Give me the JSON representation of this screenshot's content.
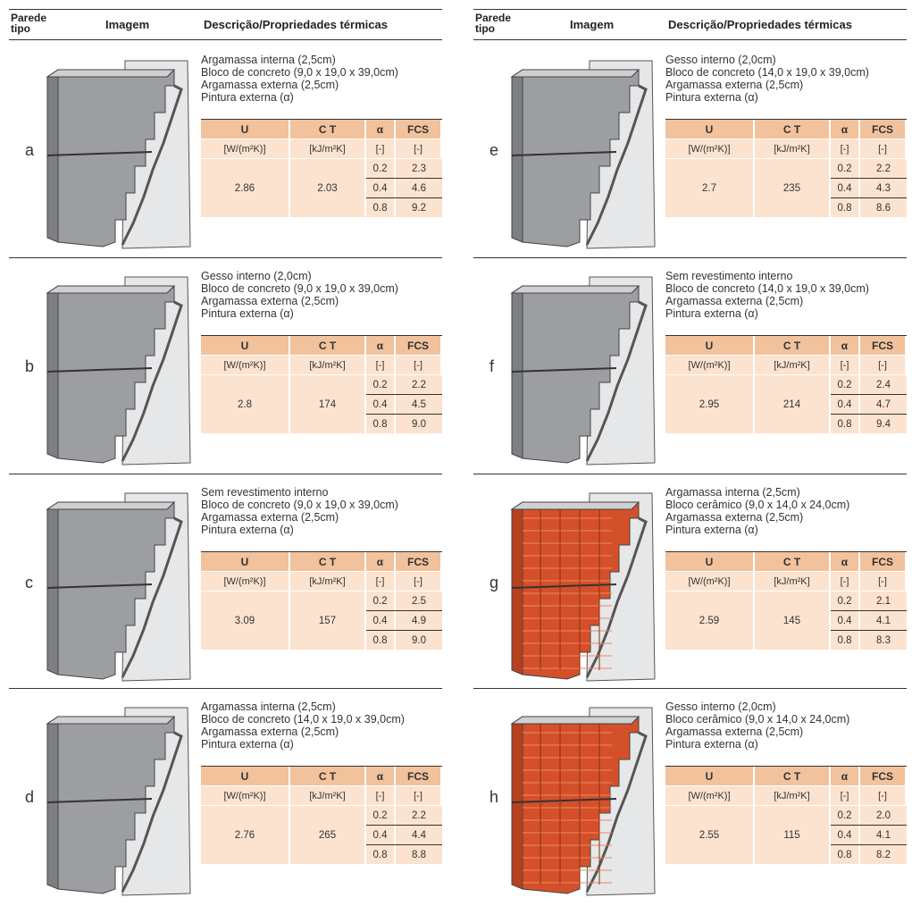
{
  "header": {
    "wall": "Parede\ntipo",
    "image": "Imagem",
    "description": "Descrição/Propriedades térmicas"
  },
  "table_header": {
    "u": "U",
    "ct": "C T",
    "alpha": "α",
    "fcs": "FCS",
    "u_unit": "[W/(m²K)]",
    "ct_unit": "[kJ/m²K]",
    "alpha_unit": "[-]",
    "fcs_unit": "[-]"
  },
  "walls": [
    {
      "label": "a",
      "material": "concrete",
      "description": [
        "Argamassa interna (2,5cm)",
        "Bloco de concreto (9,0 x 19,0 x 39,0cm)",
        "Argamassa externa (2,5cm)",
        "Pintura externa (α)"
      ],
      "u": "2.86",
      "ct": "2.03",
      "rows": [
        [
          "0.2",
          "2.3"
        ],
        [
          "0.4",
          "4.6"
        ],
        [
          "0.8",
          "9.2"
        ]
      ]
    },
    {
      "label": "b",
      "material": "concrete",
      "description": [
        "Gesso interno (2,0cm)",
        "Bloco de concreto (9,0 x 19,0 x 39,0cm)",
        "Argamassa externa (2,5cm)",
        "Pintura externa (α)"
      ],
      "u": "2.8",
      "ct": "174",
      "rows": [
        [
          "0.2",
          "2.2"
        ],
        [
          "0.4",
          "4.5"
        ],
        [
          "0.8",
          "9.0"
        ]
      ]
    },
    {
      "label": "c",
      "material": "concrete",
      "description": [
        "Sem revestimento interno",
        "Bloco de concreto (9,0 x 19,0 x 39,0cm)",
        "Argamassa externa (2,5cm)",
        "Pintura externa (α)"
      ],
      "u": "3.09",
      "ct": "157",
      "rows": [
        [
          "0.2",
          "2.5"
        ],
        [
          "0.4",
          "4.9"
        ],
        [
          "0.8",
          "9.0"
        ]
      ]
    },
    {
      "label": "d",
      "material": "concrete",
      "description": [
        "Argamassa interna (2,5cm)",
        "Bloco de concreto (14,0 x 19,0 x 39,0cm)",
        "Argamassa externa (2,5cm)",
        "Pintura externa (α)"
      ],
      "u": "2.76",
      "ct": "265",
      "rows": [
        [
          "0.2",
          "2.2"
        ],
        [
          "0.4",
          "4.4"
        ],
        [
          "0.8",
          "8.8"
        ]
      ]
    },
    {
      "label": "e",
      "material": "concrete",
      "description": [
        "Gesso interno (2,0cm)",
        "Bloco de concreto (14,0 x 19,0 x 39,0cm)",
        "Argamassa externa (2,5cm)",
        "Pintura externa (α)"
      ],
      "u": "2.7",
      "ct": "235",
      "rows": [
        [
          "0.2",
          "2.2"
        ],
        [
          "0.4",
          "4.3"
        ],
        [
          "0.8",
          "8.6"
        ]
      ]
    },
    {
      "label": "f",
      "material": "concrete",
      "description": [
        "Sem revestimento interno",
        "Bloco de concreto (14,0 x 19,0 x 39,0cm)",
        "Argamassa externa (2,5cm)",
        "Pintura externa (α)"
      ],
      "u": "2.95",
      "ct": "214",
      "rows": [
        [
          "0.2",
          "2.4"
        ],
        [
          "0.4",
          "4.7"
        ],
        [
          "0.8",
          "9.4"
        ]
      ]
    },
    {
      "label": "g",
      "material": "ceramic",
      "description": [
        "Argamassa interna (2,5cm)",
        "Bloco cerâmico (9,0 x 14,0 x 24,0cm)",
        "Argamassa externa (2,5cm)",
        "Pintura externa (α)"
      ],
      "u": "2.59",
      "ct": "145",
      "rows": [
        [
          "0.2",
          "2.1"
        ],
        [
          "0.4",
          "4.1"
        ],
        [
          "0.8",
          "8.3"
        ]
      ]
    },
    {
      "label": "h",
      "material": "ceramic",
      "description": [
        "Gesso interno (2,0cm)",
        "Bloco cerâmico (9,0 x 14,0 x 24,0cm)",
        "Argamassa externa (2,5cm)",
        "Pintura externa (α)"
      ],
      "u": "2.55",
      "ct": "115",
      "rows": [
        [
          "0.2",
          "2.0"
        ],
        [
          "0.4",
          "4.1"
        ],
        [
          "0.8",
          "8.2"
        ]
      ]
    }
  ]
}
